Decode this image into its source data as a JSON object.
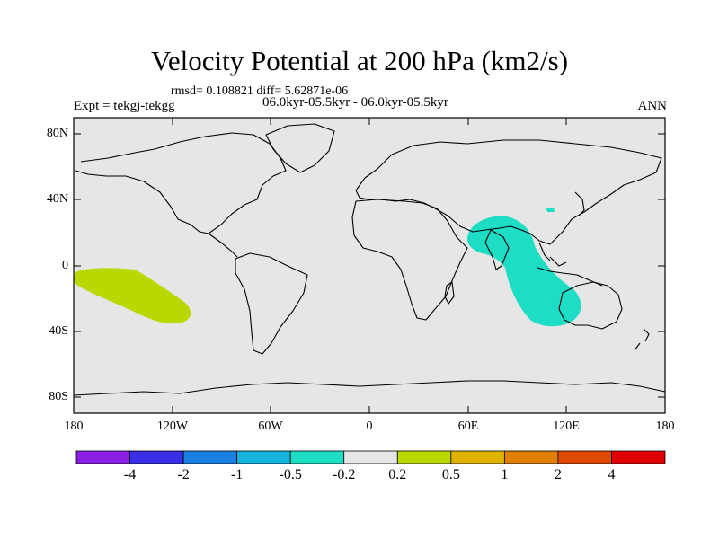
{
  "title": "Velocity Potential at 200 hPa (km2/s)",
  "stats": "rmsd= 0.108821 diff= 5.62871e-06",
  "experiment": "Expt = tekgj-tekgg",
  "period": "06.0kyr-05.5kyr - 06.0kyr-05.5kyr",
  "season": "ANN",
  "map": {
    "lat_labels": [
      "80N",
      "40N",
      "0",
      "40S",
      "80S"
    ],
    "lon_labels": [
      "180",
      "120W",
      "60W",
      "0",
      "60E",
      "120E",
      "180"
    ],
    "ocean_color": "#e6e6e6",
    "anomalies": [
      {
        "name": "central-pacific-positive-anomaly",
        "range": "0.2 to 0.5",
        "color": "#b9d800"
      },
      {
        "name": "indian-ocean-negative-anomaly",
        "range": "-0.5 to -0.2",
        "color": "#1dddc4"
      }
    ]
  },
  "colorbar": {
    "colors": [
      "#8c1ee6",
      "#3a2ee6",
      "#1a7fe0",
      "#18b4e0",
      "#1dddc4",
      "#e6e6e6",
      "#b9d800",
      "#e0b200",
      "#e08000",
      "#e04a00",
      "#e00000"
    ],
    "labels": [
      "-4",
      "-2",
      "-1",
      "-0.5",
      "-0.2",
      "0.2",
      "0.5",
      "1",
      "2",
      "4"
    ]
  }
}
